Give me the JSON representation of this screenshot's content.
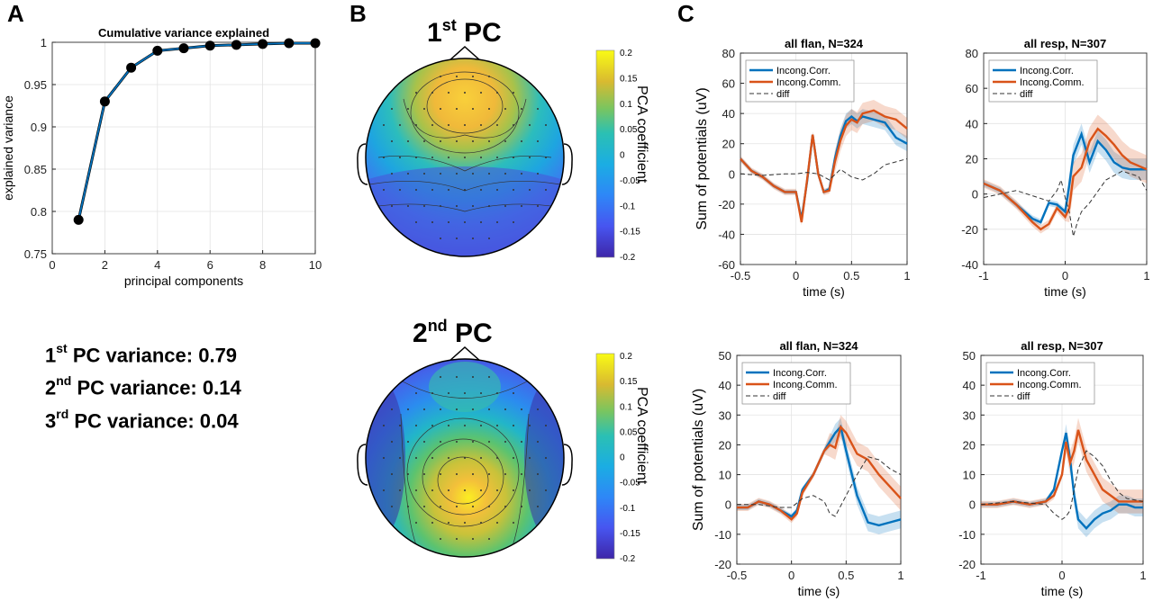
{
  "colors": {
    "blue": "#0072bd",
    "orange": "#d95319",
    "marker": "#000000"
  },
  "panel_labels": [
    "A",
    "B",
    "C"
  ],
  "variance_text": [
    {
      "num": "1",
      "sup": "st",
      "rest": " PC variance: 0.79"
    },
    {
      "num": "2",
      "sup": "nd",
      "rest": " PC variance: 0.14"
    },
    {
      "num": "3",
      "sup": "rd",
      "rest": " PC variance: 0.04"
    }
  ],
  "topomaps": [
    {
      "num": "1",
      "sup": "st",
      "rest": " PC",
      "colorbar_label": "PCA coefficient",
      "colorbar_ticks": [
        "0.2",
        "0.15",
        "0.1",
        "0.05",
        "0",
        "-0.05",
        "-0.1",
        "-0.15",
        "-0.2"
      ]
    },
    {
      "num": "2",
      "sup": "nd",
      "rest": " PC",
      "colorbar_label": "PCA coefficient",
      "colorbar_ticks": [
        "0.2",
        "0.15",
        "0.1",
        "0.05",
        "0",
        "-0.05",
        "-0.1",
        "-0.15",
        "-0.2"
      ]
    }
  ],
  "chart_data": [
    {
      "type": "line",
      "title": "Cumulative variance explained",
      "xlabel": "principal components",
      "ylabel": "explained variance",
      "xlim": [
        0,
        10
      ],
      "ylim": [
        0.75,
        1
      ],
      "xticks": [
        "0",
        "2",
        "4",
        "6",
        "8",
        "10"
      ],
      "yticks": [
        "0.75",
        "0.8",
        "0.85",
        "0.9",
        "0.95",
        "1"
      ],
      "grid": true,
      "x": [
        1,
        2,
        3,
        4,
        5,
        6,
        7,
        8,
        9,
        10
      ],
      "series": [
        {
          "values": [
            0.79,
            0.93,
            0.97,
            0.99,
            0.993,
            0.996,
            0.997,
            0.998,
            0.999,
            0.999
          ]
        }
      ]
    },
    {
      "type": "line",
      "title": "all flan, N=324",
      "xlabel": "time (s)",
      "ylabel": "Sum of potentials (uV)",
      "xlim": [
        -0.5,
        1
      ],
      "ylim": [
        -60,
        80
      ],
      "grid": true,
      "xticks": [
        "-0.5",
        "0",
        "0.5",
        "1"
      ],
      "yticks": [
        "80",
        "60",
        "40",
        "20",
        "0",
        "-20",
        "-40",
        "-60"
      ],
      "legend": "top-left",
      "series": [
        {
          "name": "Incong.Corr.",
          "x": [
            -0.5,
            -0.4,
            -0.3,
            -0.2,
            -0.1,
            0,
            0.05,
            0.1,
            0.15,
            0.2,
            0.25,
            0.3,
            0.35,
            0.4,
            0.45,
            0.5,
            0.55,
            0.6,
            0.7,
            0.8,
            0.9,
            1
          ],
          "y": [
            10,
            2,
            -2,
            -8,
            -12,
            -12,
            -30,
            -5,
            26,
            0,
            -12,
            -10,
            10,
            25,
            35,
            38,
            35,
            38,
            36,
            34,
            24,
            20
          ],
          "band": 5
        },
        {
          "name": "Incong.Comm.",
          "x": [
            -0.5,
            -0.4,
            -0.3,
            -0.2,
            -0.1,
            0,
            0.05,
            0.1,
            0.15,
            0.2,
            0.25,
            0.3,
            0.35,
            0.4,
            0.45,
            0.5,
            0.55,
            0.6,
            0.7,
            0.8,
            0.9,
            1
          ],
          "y": [
            10,
            2,
            -2,
            -8,
            -12,
            -12,
            -32,
            -4,
            26,
            0,
            -12,
            -11,
            8,
            22,
            32,
            36,
            34,
            40,
            42,
            38,
            36,
            30
          ],
          "band": 7
        },
        {
          "name": "diff",
          "x": [
            -0.5,
            -0.3,
            -0.1,
            0,
            0.1,
            0.2,
            0.3,
            0.4,
            0.5,
            0.6,
            0.7,
            0.8,
            0.9,
            1
          ],
          "y": [
            0,
            -1,
            0,
            0,
            1,
            0,
            -4,
            3,
            -2,
            -4,
            0,
            6,
            8,
            10
          ]
        }
      ]
    },
    {
      "type": "line",
      "title": "all resp, N=307",
      "xlabel": "time (s)",
      "ylabel": "",
      "xlim": [
        -1,
        1
      ],
      "ylim": [
        -40,
        80
      ],
      "grid": true,
      "xticks": [
        "-1",
        "0",
        "1"
      ],
      "yticks": [
        "80",
        "60",
        "40",
        "20",
        "0",
        "-20",
        "-40"
      ],
      "legend": "top-left",
      "series": [
        {
          "name": "Incong.Corr.",
          "x": [
            -1,
            -0.8,
            -0.6,
            -0.4,
            -0.3,
            -0.2,
            -0.1,
            0,
            0.05,
            0.1,
            0.2,
            0.3,
            0.4,
            0.5,
            0.6,
            0.7,
            0.8,
            0.9,
            1
          ],
          "y": [
            6,
            2,
            -6,
            -14,
            -16,
            -5,
            -6,
            -10,
            5,
            22,
            34,
            18,
            30,
            25,
            18,
            15,
            14,
            14,
            14
          ],
          "band": 6
        },
        {
          "name": "Incong.Comm.",
          "x": [
            -1,
            -0.8,
            -0.6,
            -0.4,
            -0.3,
            -0.2,
            -0.1,
            0,
            0.05,
            0.1,
            0.2,
            0.3,
            0.4,
            0.5,
            0.6,
            0.7,
            0.8,
            0.9,
            1
          ],
          "y": [
            6,
            2,
            -6,
            -16,
            -20,
            -17,
            -8,
            -13,
            -8,
            10,
            15,
            30,
            37,
            33,
            28,
            22,
            18,
            16,
            14
          ],
          "band": 8
        },
        {
          "name": "diff",
          "x": [
            -1,
            -0.8,
            -0.6,
            -0.4,
            -0.2,
            -0.1,
            -0.05,
            0,
            0.05,
            0.1,
            0.15,
            0.2,
            0.3,
            0.5,
            0.7,
            0.9,
            1
          ],
          "y": [
            -2,
            0,
            2,
            -1,
            -4,
            2,
            8,
            -2,
            -10,
            -24,
            -16,
            -10,
            -5,
            8,
            13,
            10,
            2
          ]
        }
      ]
    },
    {
      "type": "line",
      "title": "all flan, N=324",
      "xlabel": "time (s)",
      "ylabel": "Sum of potentials (uV)",
      "xlim": [
        -0.5,
        1
      ],
      "ylim": [
        -20,
        50
      ],
      "grid": true,
      "xticks": [
        "-0.5",
        "0",
        "0.5",
        "1"
      ],
      "yticks": [
        "50",
        "40",
        "30",
        "20",
        "10",
        "0",
        "-10",
        "-20"
      ],
      "legend": "top-left",
      "series": [
        {
          "name": "Incong.Corr.",
          "x": [
            -0.5,
            -0.4,
            -0.3,
            -0.2,
            -0.1,
            0,
            0.05,
            0.1,
            0.2,
            0.3,
            0.4,
            0.45,
            0.5,
            0.6,
            0.7,
            0.8,
            0.9,
            1
          ],
          "y": [
            -1,
            -1,
            1,
            0,
            -2,
            -4,
            -2,
            5,
            10,
            18,
            24,
            26,
            18,
            3,
            -6,
            -7,
            -6,
            -5
          ],
          "band": 3
        },
        {
          "name": "Incong.Comm.",
          "x": [
            -0.5,
            -0.4,
            -0.3,
            -0.2,
            -0.1,
            0,
            0.05,
            0.1,
            0.2,
            0.3,
            0.35,
            0.4,
            0.45,
            0.5,
            0.6,
            0.7,
            0.8,
            0.9,
            1
          ],
          "y": [
            -1,
            -1,
            1,
            0,
            -2,
            -5,
            -3,
            4,
            10,
            18,
            20,
            19,
            26,
            24,
            17,
            15,
            10,
            6,
            2
          ],
          "band": 4
        },
        {
          "name": "diff",
          "x": [
            -0.5,
            -0.3,
            -0.1,
            0,
            0.1,
            0.2,
            0.3,
            0.35,
            0.4,
            0.5,
            0.6,
            0.7,
            0.8,
            0.9,
            1
          ],
          "y": [
            0,
            0,
            -1,
            -1,
            2,
            3,
            1,
            -3,
            -4,
            3,
            10,
            16,
            15,
            12,
            10
          ]
        }
      ]
    },
    {
      "type": "line",
      "title": "all resp, N=307",
      "xlabel": "time (s)",
      "ylabel": "",
      "xlim": [
        -1,
        1
      ],
      "ylim": [
        -20,
        50
      ],
      "grid": true,
      "xticks": [
        "-1",
        "0",
        "1"
      ],
      "yticks": [
        "50",
        "40",
        "30",
        "20",
        "10",
        "0",
        "-10",
        "-20"
      ],
      "legend": "top-left",
      "series": [
        {
          "name": "Incong.Corr.",
          "x": [
            -1,
            -0.8,
            -0.6,
            -0.4,
            -0.2,
            -0.1,
            0,
            0.05,
            0.1,
            0.15,
            0.2,
            0.3,
            0.4,
            0.5,
            0.6,
            0.7,
            0.8,
            0.9,
            1
          ],
          "y": [
            0,
            0,
            1,
            0,
            1,
            5,
            18,
            24,
            15,
            3,
            -5,
            -8,
            -5,
            -3,
            -2,
            0,
            0,
            -1,
            -1
          ],
          "band": 3
        },
        {
          "name": "Incong.Comm.",
          "x": [
            -1,
            -0.8,
            -0.6,
            -0.4,
            -0.2,
            -0.1,
            0,
            0.05,
            0.1,
            0.15,
            0.2,
            0.25,
            0.3,
            0.4,
            0.5,
            0.6,
            0.7,
            0.8,
            0.9,
            1
          ],
          "y": [
            0,
            0,
            1,
            0,
            1,
            3,
            10,
            21,
            14,
            18,
            25,
            20,
            15,
            10,
            5,
            3,
            1,
            1,
            1,
            1
          ],
          "band": 4
        },
        {
          "name": "diff",
          "x": [
            -1,
            -0.6,
            -0.2,
            -0.1,
            0,
            0.05,
            0.1,
            0.2,
            0.3,
            0.4,
            0.5,
            0.6,
            0.7,
            0.8,
            1
          ],
          "y": [
            0,
            1,
            0,
            -3,
            -5,
            -4,
            -2,
            12,
            18,
            16,
            13,
            8,
            4,
            2,
            1
          ]
        }
      ]
    }
  ]
}
